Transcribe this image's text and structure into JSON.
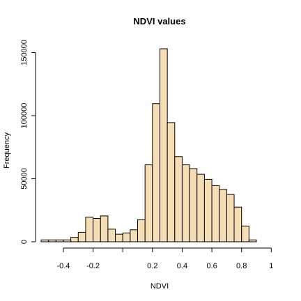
{
  "chart_data": {
    "type": "bar",
    "title": "NDVI values",
    "xlabel": "NDVI",
    "ylabel": "Frequency",
    "bar_color": "#f5deb3",
    "bin_width": 0.05,
    "bins": [
      {
        "x0": -0.55,
        "x1": -0.5,
        "count": 1500
      },
      {
        "x0": -0.5,
        "x1": -0.45,
        "count": 1500
      },
      {
        "x0": -0.45,
        "x1": -0.4,
        "count": 1500
      },
      {
        "x0": -0.4,
        "x1": -0.35,
        "count": 1500
      },
      {
        "x0": -0.35,
        "x1": -0.3,
        "count": 3500
      },
      {
        "x0": -0.3,
        "x1": -0.25,
        "count": 7500
      },
      {
        "x0": -0.25,
        "x1": -0.2,
        "count": 19500
      },
      {
        "x0": -0.2,
        "x1": -0.15,
        "count": 18500
      },
      {
        "x0": -0.15,
        "x1": -0.1,
        "count": 20500
      },
      {
        "x0": -0.1,
        "x1": -0.05,
        "count": 10000
      },
      {
        "x0": -0.05,
        "x1": 0.0,
        "count": 6000
      },
      {
        "x0": 0.0,
        "x1": 0.05,
        "count": 7000
      },
      {
        "x0": 0.05,
        "x1": 0.1,
        "count": 9500
      },
      {
        "x0": 0.1,
        "x1": 0.15,
        "count": 17500
      },
      {
        "x0": 0.15,
        "x1": 0.2,
        "count": 61000
      },
      {
        "x0": 0.2,
        "x1": 0.25,
        "count": 109500
      },
      {
        "x0": 0.25,
        "x1": 0.3,
        "count": 153000
      },
      {
        "x0": 0.3,
        "x1": 0.35,
        "count": 94500
      },
      {
        "x0": 0.35,
        "x1": 0.4,
        "count": 67500
      },
      {
        "x0": 0.4,
        "x1": 0.45,
        "count": 61000
      },
      {
        "x0": 0.45,
        "x1": 0.5,
        "count": 58000
      },
      {
        "x0": 0.5,
        "x1": 0.55,
        "count": 53500
      },
      {
        "x0": 0.55,
        "x1": 0.6,
        "count": 49500
      },
      {
        "x0": 0.6,
        "x1": 0.65,
        "count": 44500
      },
      {
        "x0": 0.65,
        "x1": 0.7,
        "count": 41500
      },
      {
        "x0": 0.7,
        "x1": 0.75,
        "count": 37500
      },
      {
        "x0": 0.75,
        "x1": 0.8,
        "count": 27500
      },
      {
        "x0": 0.8,
        "x1": 0.85,
        "count": 12500
      },
      {
        "x0": 0.85,
        "x1": 0.9,
        "count": 1500
      }
    ],
    "xlim": [
      -0.55,
      0.9
    ],
    "ylim": [
      0,
      153000
    ],
    "x_ticks": [
      {
        "value": -0.4,
        "label": "-0.4"
      },
      {
        "value": -0.2,
        "label": "-0.2"
      },
      {
        "value": 0.0,
        "label": ""
      },
      {
        "value": 0.2,
        "label": "0.2"
      },
      {
        "value": 0.4,
        "label": "0.4"
      },
      {
        "value": 0.6,
        "label": "0.6"
      },
      {
        "value": 0.8,
        "label": "0.8"
      },
      {
        "value": 1.0,
        "label": "1"
      }
    ],
    "y_ticks": [
      {
        "value": 0,
        "label": "0"
      },
      {
        "value": 50000,
        "label": "50000"
      },
      {
        "value": 100000,
        "label": "100000"
      },
      {
        "value": 150000,
        "label": "150000"
      }
    ],
    "grid": false,
    "legend": "none"
  }
}
